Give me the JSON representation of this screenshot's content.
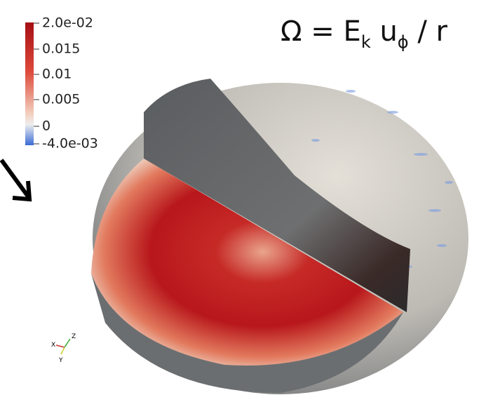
{
  "colorbar": {
    "ticks": [
      "2.0e-02",
      "0.015",
      "0.01",
      "0.005",
      "0",
      "-4.0e-03"
    ]
  },
  "formula": {
    "lhs": "Ω",
    "equals": "=",
    "e": "E",
    "e_sub": "k",
    "u": "u",
    "u_sub": "ϕ",
    "rest": "/ r"
  },
  "axes": {
    "x": "X",
    "y": "Y",
    "z": "Z"
  }
}
